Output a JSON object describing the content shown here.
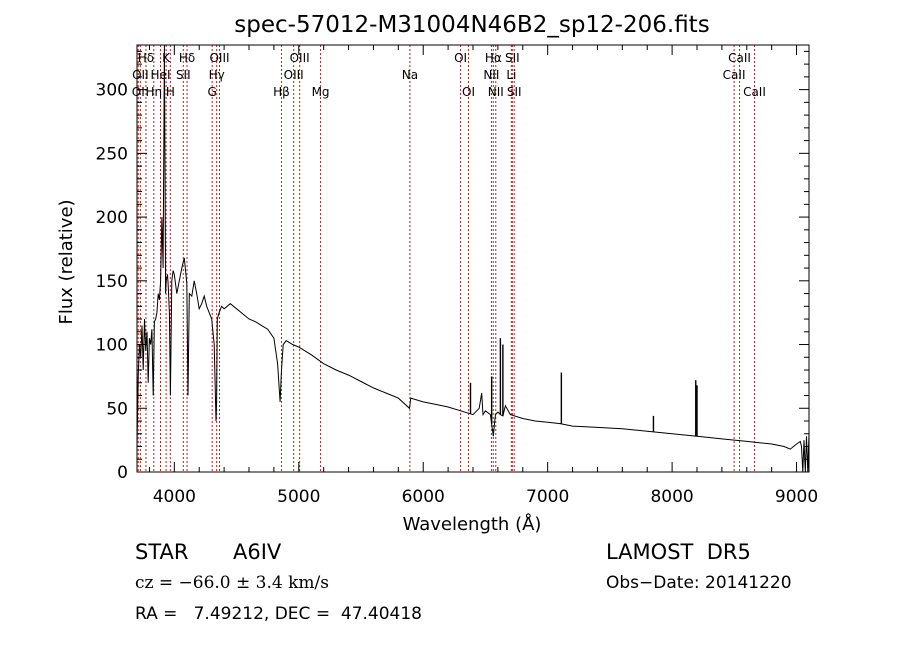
{
  "chart_data": {
    "type": "line",
    "title": "spec-57012-M31004N46B2_sp12-206.fits",
    "xlabel": "Wavelength (Å)",
    "ylabel": "Flux (relative)",
    "xlim": [
      3700,
      9100
    ],
    "ylim": [
      0,
      335
    ],
    "xticks": [
      4000,
      5000,
      6000,
      7000,
      8000,
      9000
    ],
    "yticks": [
      0,
      50,
      100,
      150,
      200,
      250,
      300
    ],
    "series": [
      {
        "x": [
          3700,
          3710,
          3720,
          3730,
          3740,
          3750,
          3760,
          3770,
          3780,
          3790,
          3800,
          3810,
          3820,
          3830,
          3840,
          3850,
          3860,
          3870,
          3880,
          3890,
          3900,
          3910,
          3920,
          3930,
          3935,
          3945,
          3950,
          3960,
          3968,
          3980,
          3990,
          4000,
          4020,
          4040,
          4060,
          4080,
          4100,
          4110,
          4120,
          4140,
          4160,
          4180,
          4200,
          4220,
          4240,
          4260,
          4280,
          4300,
          4320,
          4335,
          4340,
          4345,
          4360,
          4380,
          4400,
          4450,
          4500,
          4550,
          4600,
          4650,
          4700,
          4750,
          4800,
          4830,
          4850,
          4861,
          4875,
          4900,
          4950,
          5000,
          5100,
          5200,
          5300,
          5400,
          5500,
          5600,
          5700,
          5800,
          5890,
          5900,
          6000,
          6100,
          6200,
          6300,
          6400,
          6450,
          6470,
          6480,
          6500,
          6540,
          6563,
          6580,
          6600,
          6620,
          6640,
          6660,
          6700,
          6800,
          6900,
          7000,
          7100,
          7200,
          7400,
          7600,
          7800,
          8000,
          8200,
          8400,
          8600,
          8800,
          8900,
          8950,
          9000,
          9030,
          9040,
          9050,
          9060,
          9070,
          9080,
          9090,
          9100
        ],
        "values": [
          20,
          75,
          100,
          90,
          115,
          80,
          120,
          95,
          110,
          70,
          105,
          100,
          112,
          60,
          118,
          120,
          125,
          140,
          135,
          150,
          200,
          160,
          335,
          140,
          150,
          155,
          148,
          125,
          60,
          150,
          158,
          155,
          140,
          150,
          160,
          168,
          148,
          60,
          140,
          138,
          150,
          140,
          128,
          132,
          138,
          130,
          125,
          120,
          100,
          40,
          55,
          120,
          125,
          130,
          128,
          132,
          128,
          124,
          120,
          118,
          115,
          112,
          105,
          85,
          55,
          80,
          100,
          103,
          100,
          98,
          92,
          85,
          80,
          76,
          71,
          66,
          62,
          58,
          50,
          58,
          55,
          53,
          51,
          48,
          45,
          50,
          62,
          45,
          48,
          45,
          28,
          45,
          47,
          45,
          44,
          52,
          45,
          42,
          40,
          39,
          38,
          36,
          35,
          34,
          32,
          30,
          28,
          26,
          24,
          22,
          20,
          18,
          22,
          24,
          20,
          0,
          25,
          0,
          28,
          0,
          30
        ]
      }
    ],
    "spikes": [
      {
        "x": 6380,
        "y": 70
      },
      {
        "x": 6470,
        "y": 62
      },
      {
        "x": 6550,
        "y": 75
      },
      {
        "x": 6620,
        "y": 105
      },
      {
        "x": 6640,
        "y": 100
      },
      {
        "x": 7110,
        "y": 78
      },
      {
        "x": 7850,
        "y": 44
      },
      {
        "x": 8190,
        "y": 72
      },
      {
        "x": 8200,
        "y": 68
      }
    ],
    "lines": [
      {
        "label": "Hδ",
        "x": 3772,
        "row": 0
      },
      {
        "label": "OII",
        "x": 3727,
        "row": 1
      },
      {
        "label": "OI",
        "x": 3710,
        "row": 2
      },
      {
        "label": "Hη",
        "x": 3835,
        "row": 2
      },
      {
        "label": "K",
        "x": 3934,
        "row": 0
      },
      {
        "label": "HeI",
        "x": 3889,
        "row": 1
      },
      {
        "label": "H",
        "x": 3968,
        "row": 2
      },
      {
        "label": "Hδ",
        "x": 4102,
        "row": 0
      },
      {
        "label": "SII",
        "x": 4072,
        "row": 1
      },
      {
        "label": "OIII",
        "x": 4363,
        "row": 0
      },
      {
        "label": "Hγ",
        "x": 4340,
        "row": 1
      },
      {
        "label": "G",
        "x": 4304,
        "row": 2
      },
      {
        "label": "Hβ",
        "x": 4861,
        "row": 2
      },
      {
        "label": "OIII",
        "x": 5007,
        "row": 0
      },
      {
        "label": "OIII",
        "x": 4959,
        "row": 1
      },
      {
        "label": "Mg",
        "x": 5175,
        "row": 2
      },
      {
        "label": "Na",
        "x": 5893,
        "row": 1
      },
      {
        "label": "OI",
        "x": 6300,
        "row": 0
      },
      {
        "label": "OI",
        "x": 6364,
        "row": 2
      },
      {
        "label": "Hα",
        "x": 6563,
        "row": 0
      },
      {
        "label": "SII",
        "x": 6716,
        "row": 0
      },
      {
        "label": "NII",
        "x": 6548,
        "row": 1
      },
      {
        "label": "Li",
        "x": 6708,
        "row": 1
      },
      {
        "label": "NII",
        "x": 6583,
        "row": 2
      },
      {
        "label": "SII",
        "x": 6731,
        "row": 2
      },
      {
        "label": "CaII",
        "x": 8542,
        "row": 0
      },
      {
        "label": "CaII",
        "x": 8498,
        "row": 1
      },
      {
        "label": "CaII",
        "x": 8662,
        "row": 2
      }
    ]
  },
  "info": {
    "object_class": "STAR",
    "subclass": "A6IV",
    "survey": "LAMOST  DR5",
    "redshift": "cz = −66.0 ± 3.4 km/s",
    "obs_date": "Obs−Date: 20141220",
    "coords": "RA =   7.49212, DEC =  47.40418"
  },
  "colors": {
    "line_marker": "#b22222",
    "spectrum": "#000000",
    "background": "#ffffff"
  }
}
